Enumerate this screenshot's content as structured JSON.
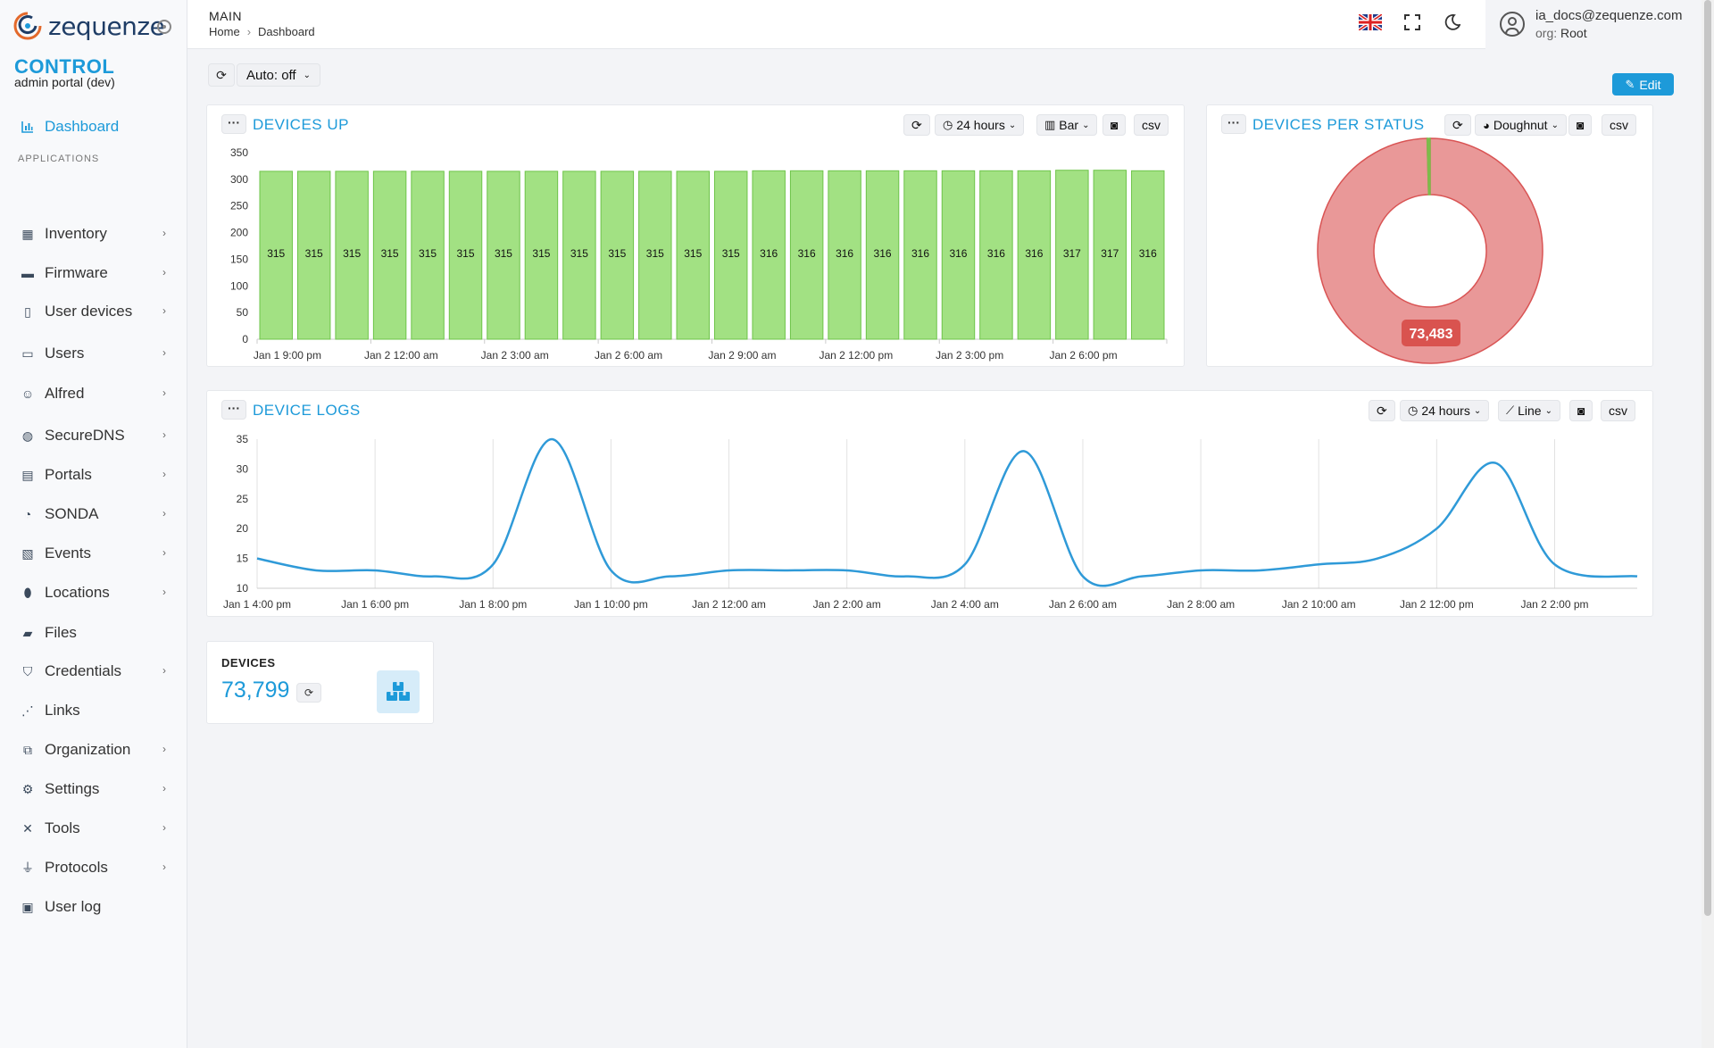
{
  "app": {
    "logo_text": "zequenze",
    "brand": "CONTROL",
    "brand_sub": "admin portal (dev)"
  },
  "sidebar": {
    "active": "Dashboard",
    "section_label": "APPLICATIONS",
    "items": [
      {
        "label": "Inventory",
        "icon": "boxes-icon",
        "has_children": true
      },
      {
        "label": "Firmware",
        "icon": "truck-icon",
        "has_children": true
      },
      {
        "label": "User devices",
        "icon": "mobile-icon",
        "has_children": true
      },
      {
        "label": "Users",
        "icon": "id-card-icon",
        "has_children": true
      },
      {
        "label": "Alfred",
        "icon": "robot-icon",
        "has_children": true
      },
      {
        "label": "SecureDNS",
        "icon": "globe-icon",
        "has_children": true
      },
      {
        "label": "Portals",
        "icon": "window-icon",
        "has_children": true
      },
      {
        "label": "SONDA",
        "icon": "gauge-icon",
        "has_children": true
      },
      {
        "label": "Events",
        "icon": "note-icon",
        "has_children": true
      },
      {
        "label": "Locations",
        "icon": "map-pin-icon",
        "has_children": true
      },
      {
        "label": "Files",
        "icon": "folder-icon",
        "has_children": false
      },
      {
        "label": "Credentials",
        "icon": "shield-icon",
        "has_children": true
      },
      {
        "label": "Links",
        "icon": "share-icon",
        "has_children": false
      },
      {
        "label": "Organization",
        "icon": "sitemap-icon",
        "has_children": true
      },
      {
        "label": "Settings",
        "icon": "gears-icon",
        "has_children": true
      },
      {
        "label": "Tools",
        "icon": "tools-icon",
        "has_children": true
      },
      {
        "label": "Protocols",
        "icon": "plug-icon",
        "has_children": true
      },
      {
        "label": "User log",
        "icon": "calendar-icon",
        "has_children": false
      }
    ]
  },
  "header": {
    "section": "MAIN",
    "breadcrumb": [
      "Home",
      "Dashboard"
    ],
    "user_email": "ia_docs@zequenze.com",
    "org_label": "org:",
    "org_value": "Root"
  },
  "toolbar": {
    "auto_label": "Auto: off",
    "edit_label": "Edit"
  },
  "widgets": {
    "devices_up": {
      "title": "DEVICES UP",
      "range_label": "24 hours",
      "type_label": "Bar",
      "csv_label": "csv"
    },
    "devices_per_status": {
      "title": "DEVICES PER STATUS",
      "type_label": "Doughnut",
      "csv_label": "csv"
    },
    "device_logs": {
      "title": "DEVICE LOGS",
      "range_label": "24 hours",
      "type_label": "Line",
      "csv_label": "csv"
    },
    "devices_kpi": {
      "title": "DEVICES",
      "value": "73,799"
    }
  },
  "colors": {
    "accent": "#1d9ad9",
    "bar_fill": "#a2e183",
    "bar_stroke": "#6ec44a",
    "doughnut_main": "#e99898",
    "doughnut_stroke": "#d95454",
    "doughnut_small": "#7dbb4b",
    "doughnut_label_bg": "#d9534f",
    "line": "#2f9ad8"
  },
  "chart_data": [
    {
      "type": "bar",
      "title": "DEVICES UP",
      "ylim": [
        0,
        350
      ],
      "yticks": [
        0,
        50,
        100,
        150,
        200,
        250,
        300,
        350
      ],
      "values": [
        315,
        315,
        315,
        315,
        315,
        315,
        315,
        315,
        315,
        315,
        315,
        315,
        315,
        316,
        316,
        316,
        316,
        316,
        316,
        316,
        316,
        317,
        317,
        316
      ],
      "xtick_labels": [
        "Jan 1 9:00 pm",
        "Jan 2 12:00 am",
        "Jan 2 3:00 am",
        "Jan 2 6:00 am",
        "Jan 2 9:00 am",
        "Jan 2 12:00 pm",
        "Jan 2 3:00 pm",
        "Jan 2 6:00 pm"
      ],
      "data_labels": true,
      "grid": false
    },
    {
      "type": "pie",
      "variant": "doughnut",
      "title": "DEVICES PER STATUS",
      "slices": [
        {
          "value": 73483,
          "label": "73,483"
        },
        {
          "value": 316,
          "label": ""
        }
      ]
    },
    {
      "type": "line",
      "title": "DEVICE LOGS",
      "ylim": [
        10,
        35
      ],
      "yticks": [
        10,
        15,
        20,
        25,
        30,
        35
      ],
      "x_hours": [
        0,
        1,
        2,
        3,
        4,
        5,
        6,
        7,
        8,
        9,
        10,
        11,
        12,
        13,
        14,
        15,
        16,
        17,
        18,
        19,
        20,
        21,
        22,
        23,
        24
      ],
      "values": [
        15,
        13,
        13,
        12,
        14,
        35,
        13,
        12,
        13,
        13,
        13,
        12,
        14,
        33,
        12,
        12,
        13,
        13,
        14,
        15,
        20,
        31,
        14,
        12
      ],
      "x": [
        0,
        1,
        2,
        3,
        4,
        5,
        6,
        7,
        8,
        9,
        10,
        11,
        12,
        13,
        14,
        15,
        16,
        17,
        18,
        19,
        20,
        21,
        22,
        23.4
      ],
      "xlim": [
        0,
        23.4
      ],
      "xtick_labels": [
        "Jan 1 4:00 pm",
        "Jan 1 6:00 pm",
        "Jan 1 8:00 pm",
        "Jan 1 10:00 pm",
        "Jan 2 12:00 am",
        "Jan 2 2:00 am",
        "Jan 2 4:00 am",
        "Jan 2 6:00 am",
        "Jan 2 8:00 am",
        "Jan 2 10:00 am",
        "Jan 2 12:00 pm",
        "Jan 2 2:00 pm"
      ],
      "grid": "vertical"
    }
  ]
}
